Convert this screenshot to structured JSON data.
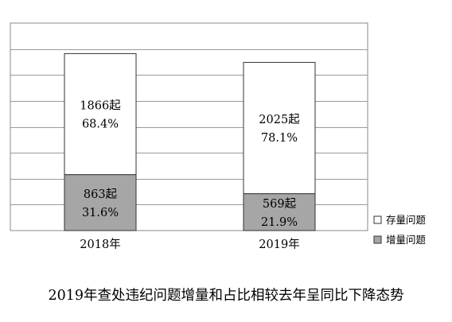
{
  "chart_data": {
    "type": "bar",
    "stacked": true,
    "categories": [
      "2018年",
      "2019年"
    ],
    "series": [
      {
        "name": "增量问题",
        "values": [
          863,
          569
        ],
        "percent_labels": [
          "31.6%",
          "21.9%"
        ],
        "value_labels": [
          "863起",
          "569起"
        ],
        "color": "#a6a6a6"
      },
      {
        "name": "存量问题",
        "values": [
          1866,
          2025
        ],
        "percent_labels": [
          "68.4%",
          "78.1%"
        ],
        "value_labels": [
          "1866起",
          "2025起"
        ],
        "color": "#ffffff"
      }
    ],
    "title": "2019年查处违纪问题增量和占比相较去年呈同比下降态势",
    "ylim": [
      0,
      3200
    ],
    "grid": true,
    "legend_position": "right-bottom"
  }
}
